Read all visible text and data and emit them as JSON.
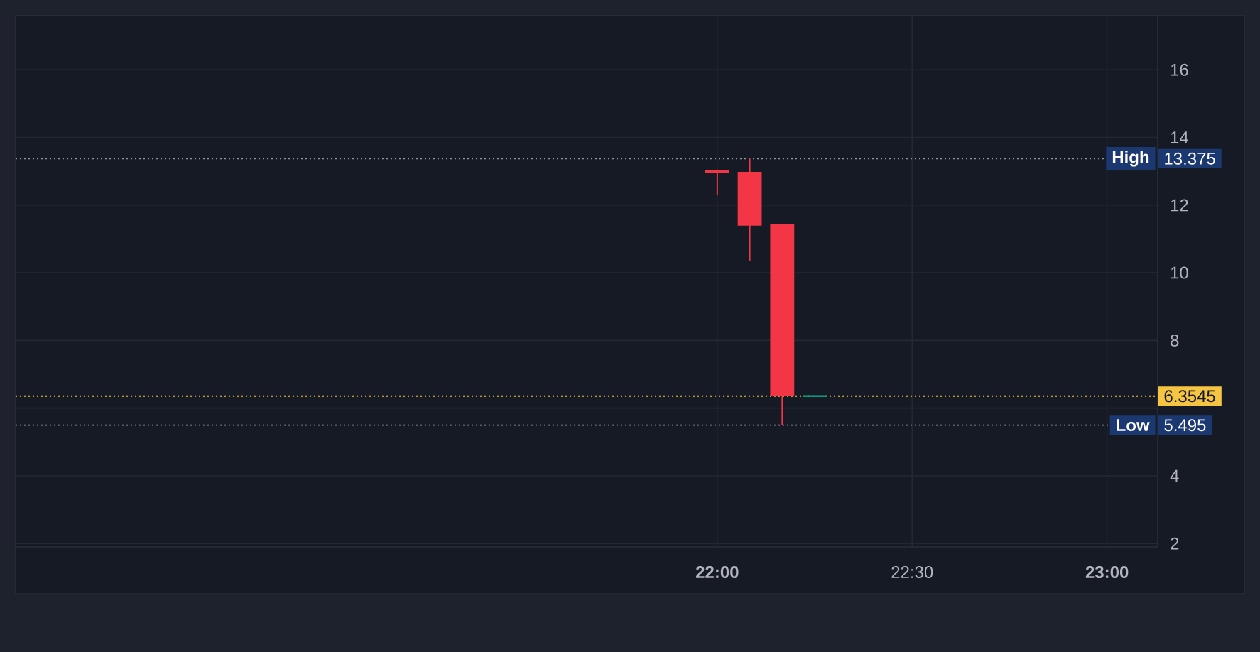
{
  "chart_data": {
    "type": "candlestick",
    "x": [
      22,
      22.0833,
      22.1667,
      22.25
    ],
    "ohlc": [
      [
        13.03,
        13.05,
        12.29,
        12.94
      ],
      [
        12.98,
        13.375,
        10.36,
        11.39
      ],
      [
        11.43,
        11.43,
        5.495,
        6.3545
      ],
      [
        6.3545,
        6.3545,
        6.3545,
        6.3545
      ]
    ],
    "colors": [
      "#f23645",
      "#f23645",
      "#f23645",
      "#089981"
    ],
    "xlim": [
      20.2,
      23.13
    ],
    "ylim": [
      1.9,
      17.6
    ],
    "xticks": [
      {
        "value": 22,
        "label": "22:00"
      },
      {
        "value": 22.5,
        "label": "22:30"
      },
      {
        "value": 23,
        "label": "23:00"
      }
    ],
    "yticks": [
      2,
      4,
      {
        "value": 6,
        "label": null
      },
      8,
      10,
      12,
      14,
      16
    ],
    "grid": true,
    "ref_lines": [
      {
        "axis": "y",
        "value": 13.375,
        "label": "High",
        "color": "#9598a1",
        "line_style": "dotted"
      },
      {
        "axis": "y",
        "value": 6.3545,
        "color": "#f5c542",
        "line_style": "dotted"
      },
      {
        "axis": "y",
        "value": 5.495,
        "label": "Low",
        "color": "#9598a1",
        "line_style": "dotted"
      }
    ],
    "annotations": [
      "13.375",
      "6.3545",
      "5.495"
    ]
  }
}
